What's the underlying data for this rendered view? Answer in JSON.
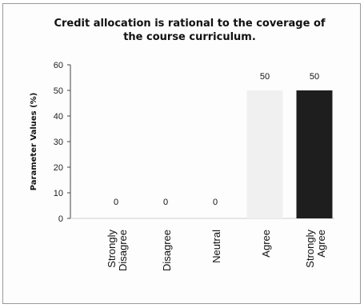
{
  "chart_data": {
    "type": "bar",
    "title": "Credit allocation is rational to the coverage of the course curriculum.",
    "title_lines": [
      "Credit allocation is rational to the coverage of",
      "the course curriculum."
    ],
    "ylabel": "Parameter Values (%)",
    "xlabel": "",
    "ylim": [
      0,
      60
    ],
    "yticks": [
      0,
      10,
      20,
      30,
      40,
      50,
      60
    ],
    "grid": false,
    "categories": [
      "Strongly Disagree",
      "Disagree",
      "Neutral",
      "Agree",
      "Strongly Agree"
    ],
    "category_lines": [
      [
        "Strongly",
        "Disagree"
      ],
      [
        "Disagree"
      ],
      [
        "Neutral"
      ],
      [
        "Agree"
      ],
      [
        "Strongly",
        "Agree"
      ]
    ],
    "values": [
      0,
      0,
      0,
      50,
      50
    ],
    "data_labels": [
      "0",
      "0",
      "0",
      "50",
      "50"
    ],
    "bar_colors": [
      "#d9d9d9",
      "#d9d9d9",
      "#d9d9d9",
      "#f0f0f0",
      "#1e1e1e"
    ]
  }
}
